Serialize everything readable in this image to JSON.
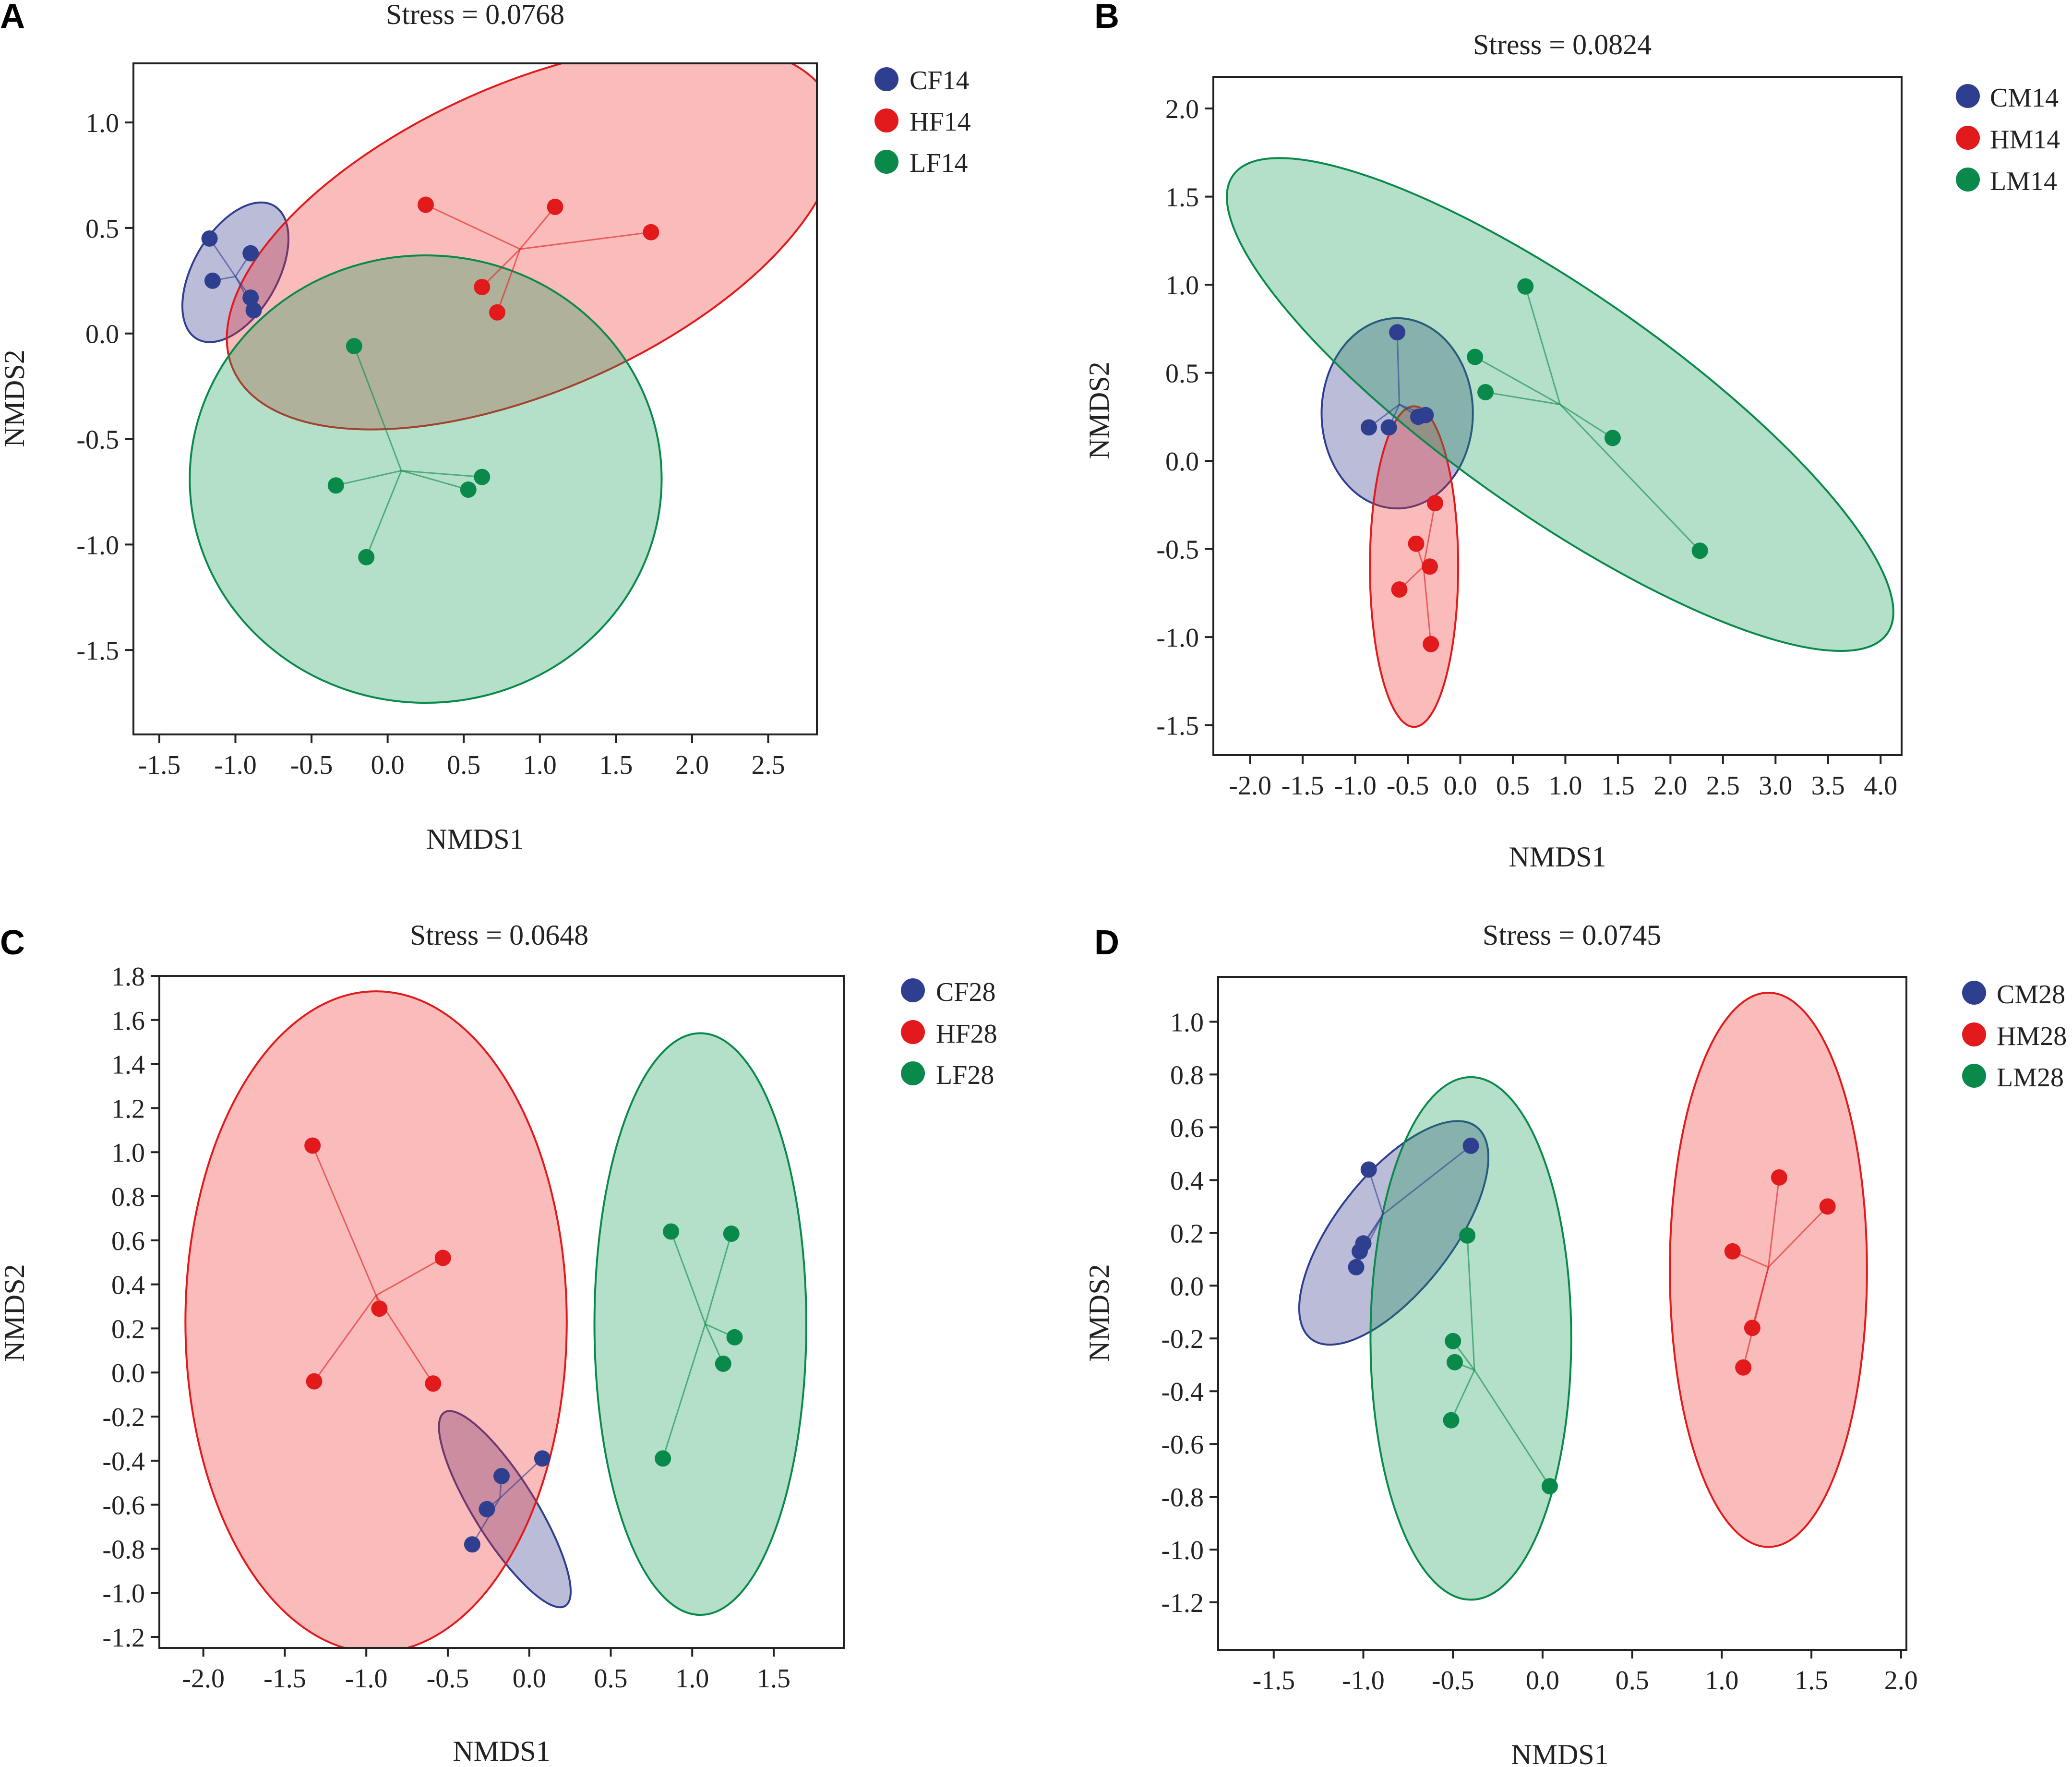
{
  "colors": {
    "blue": "#2f3f8f",
    "red": "#e31a1c",
    "green": "#0a8a4a"
  },
  "chart_data": [
    {
      "type": "scatter",
      "panel": "A",
      "title": "Stress = 0.0768",
      "xlabel": "NMDS1",
      "ylabel": "NMDS2",
      "xlim": [
        -1.67,
        2.82
      ],
      "ylim": [
        -1.9,
        1.28
      ],
      "xticks": [
        -1.5,
        -1.0,
        -0.5,
        0.0,
        0.5,
        1.0,
        1.5,
        2.0,
        2.5
      ],
      "yticks": [
        1.0,
        0.5,
        0.0,
        -0.5,
        -1.0,
        -1.5
      ],
      "tick_decimals": 1,
      "legend_position": "right",
      "series": [
        {
          "name": "CF14",
          "color": "blue",
          "points": [
            [
              -1.17,
              0.45
            ],
            [
              -0.9,
              0.38
            ],
            [
              -1.15,
              0.25
            ],
            [
              -0.9,
              0.17
            ],
            [
              -0.88,
              0.11
            ]
          ],
          "centroid": [
            -1.0,
            0.27
          ],
          "ellipse": {
            "cx": -1.0,
            "cy": 0.29,
            "rx": 0.505,
            "ry": 0.2,
            "angle": 60
          }
        },
        {
          "name": "HF14",
          "color": "red",
          "points": [
            [
              0.25,
              0.61
            ],
            [
              1.1,
              0.6
            ],
            [
              1.73,
              0.48
            ],
            [
              0.62,
              0.22
            ],
            [
              0.72,
              0.1
            ]
          ],
          "centroid": [
            0.87,
            0.4
          ],
          "ellipse": {
            "cx": 0.95,
            "cy": 0.46,
            "rx": 2.15,
            "ry": 0.725,
            "angle": 24
          }
        },
        {
          "name": "LF14",
          "color": "green",
          "points": [
            [
              -0.22,
              -0.06
            ],
            [
              -0.34,
              -0.72
            ],
            [
              0.62,
              -0.68
            ],
            [
              0.53,
              -0.74
            ],
            [
              -0.14,
              -1.06
            ]
          ],
          "centroid": [
            0.09,
            -0.65
          ],
          "ellipse": {
            "cx": 0.25,
            "cy": -0.69,
            "rx": 1.55,
            "ry": 1.06,
            "angle": 0
          }
        }
      ]
    },
    {
      "type": "scatter",
      "panel": "B",
      "title": "Stress = 0.0824",
      "xlabel": "NMDS1",
      "ylabel": "NMDS2",
      "xlim": [
        -2.35,
        4.2
      ],
      "ylim": [
        -1.67,
        2.18
      ],
      "xticks": [
        -2.0,
        -1.5,
        -1.0,
        -0.5,
        0.0,
        0.5,
        1.0,
        1.5,
        2.0,
        2.5,
        3.0,
        3.5,
        4.0
      ],
      "yticks": [
        2.0,
        1.5,
        1.0,
        0.5,
        0.0,
        -0.5,
        -1.0,
        -1.5
      ],
      "tick_decimals": 1,
      "legend_position": "right",
      "series": [
        {
          "name": "CM14",
          "color": "blue",
          "points": [
            [
              -0.6,
              0.73
            ],
            [
              -0.87,
              0.19
            ],
            [
              -0.68,
              0.19
            ],
            [
              -0.4,
              0.25
            ],
            [
              -0.33,
              0.26
            ]
          ],
          "centroid": [
            -0.58,
            0.32
          ],
          "ellipse": {
            "cx": -0.6,
            "cy": 0.27,
            "rx": 0.72,
            "ry": 0.54,
            "angle": 0
          }
        },
        {
          "name": "HM14",
          "color": "red",
          "points": [
            [
              -0.24,
              -0.24
            ],
            [
              -0.42,
              -0.47
            ],
            [
              -0.29,
              -0.6
            ],
            [
              -0.58,
              -0.73
            ],
            [
              -0.28,
              -1.04
            ]
          ],
          "centroid": [
            -0.35,
            -0.6
          ],
          "ellipse": {
            "cx": -0.44,
            "cy": -0.6,
            "rx": 0.42,
            "ry": 0.91,
            "angle": 0
          }
        },
        {
          "name": "LM14",
          "color": "green",
          "points": [
            [
              0.62,
              0.99
            ],
            [
              0.14,
              0.59
            ],
            [
              0.24,
              0.39
            ],
            [
              1.45,
              0.13
            ],
            [
              2.28,
              -0.51
            ]
          ],
          "centroid": [
            0.95,
            0.32
          ],
          "ellipse": {
            "cx": 0.95,
            "cy": 0.32,
            "rx": 3.8,
            "ry": 0.63,
            "angle": -35
          }
        }
      ]
    },
    {
      "type": "scatter",
      "panel": "C",
      "title": "Stress = 0.0648",
      "xlabel": "NMDS1",
      "ylabel": "NMDS2",
      "xlim": [
        -2.27,
        1.93
      ],
      "ylim": [
        -1.25,
        1.8
      ],
      "xticks": [
        -2.0,
        -1.5,
        -1.0,
        -0.5,
        0.0,
        0.5,
        1.0,
        1.5
      ],
      "yticks": [
        1.8,
        1.6,
        1.4,
        1.2,
        1.0,
        0.8,
        0.6,
        0.4,
        0.2,
        0.0,
        -0.2,
        -0.4,
        -0.6,
        -0.8,
        -1.0,
        -1.2
      ],
      "tick_decimals": 1,
      "legend_position": "right",
      "series": [
        {
          "name": "CF28",
          "color": "blue",
          "points": [
            [
              0.08,
              -0.39
            ],
            [
              -0.17,
              -0.47
            ],
            [
              -0.26,
              -0.62
            ],
            [
              -0.35,
              -0.78
            ]
          ],
          "centroid": [
            -0.18,
            -0.57
          ],
          "ellipse": {
            "cx": -0.15,
            "cy": -0.62,
            "rx": 0.7,
            "ry": 0.14,
            "angle": -58
          }
        },
        {
          "name": "HF28",
          "color": "red",
          "points": [
            [
              -1.33,
              1.03
            ],
            [
              -0.53,
              0.52
            ],
            [
              -0.92,
              0.29
            ],
            [
              -1.32,
              -0.04
            ],
            [
              -0.59,
              -0.05
            ]
          ],
          "centroid": [
            -0.94,
            0.35
          ],
          "ellipse": {
            "cx": -0.94,
            "cy": 0.23,
            "rx": 1.17,
            "ry": 1.5,
            "angle": 0
          }
        },
        {
          "name": "LF28",
          "color": "green",
          "points": [
            [
              0.87,
              0.64
            ],
            [
              1.24,
              0.63
            ],
            [
              1.26,
              0.16
            ],
            [
              1.19,
              0.04
            ],
            [
              0.82,
              -0.39
            ]
          ],
          "centroid": [
            1.08,
            0.22
          ],
          "ellipse": {
            "cx": 1.05,
            "cy": 0.22,
            "rx": 0.65,
            "ry": 1.32,
            "angle": 0
          }
        }
      ]
    },
    {
      "type": "scatter",
      "panel": "D",
      "title": "Stress = 0.0745",
      "xlabel": "NMDS1",
      "ylabel": "NMDS2",
      "xlim": [
        -1.81,
        2.03
      ],
      "ylim": [
        -1.38,
        1.17
      ],
      "xticks": [
        -1.5,
        -1.0,
        -0.5,
        0.0,
        0.5,
        1.0,
        1.5,
        2.0
      ],
      "yticks": [
        1.0,
        0.8,
        0.6,
        0.4,
        0.2,
        0.0,
        -0.2,
        -0.4,
        -0.6,
        -0.8,
        -1.0,
        -1.2
      ],
      "tick_decimals": 1,
      "legend_position": "right",
      "series": [
        {
          "name": "CM28",
          "color": "blue",
          "points": [
            [
              -0.97,
              0.44
            ],
            [
              -0.4,
              0.53
            ],
            [
              -1.0,
              0.16
            ],
            [
              -1.02,
              0.13
            ],
            [
              -1.04,
              0.07
            ]
          ],
          "centroid": [
            -0.89,
            0.27
          ],
          "ellipse": {
            "cx": -0.83,
            "cy": 0.2,
            "rx": 0.75,
            "ry": 0.22,
            "angle": 52
          }
        },
        {
          "name": "HM28",
          "color": "red",
          "points": [
            [
              1.32,
              0.41
            ],
            [
              1.59,
              0.3
            ],
            [
              1.06,
              0.13
            ],
            [
              1.17,
              -0.16
            ],
            [
              1.12,
              -0.31
            ]
          ],
          "centroid": [
            1.26,
            0.07
          ],
          "ellipse": {
            "cx": 1.26,
            "cy": 0.06,
            "rx": 0.55,
            "ry": 1.05,
            "angle": 0
          }
        },
        {
          "name": "LM28",
          "color": "green",
          "points": [
            [
              -0.42,
              0.19
            ],
            [
              -0.5,
              -0.21
            ],
            [
              -0.49,
              -0.29
            ],
            [
              -0.51,
              -0.51
            ],
            [
              0.04,
              -0.76
            ]
          ],
          "centroid": [
            -0.38,
            -0.32
          ],
          "ellipse": {
            "cx": -0.4,
            "cy": -0.2,
            "rx": 0.56,
            "ry": 0.99,
            "angle": 0
          }
        }
      ]
    }
  ]
}
